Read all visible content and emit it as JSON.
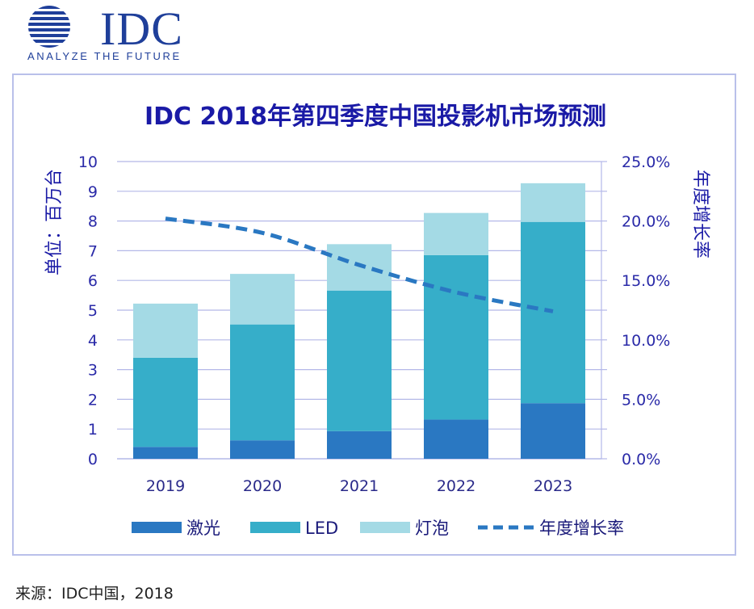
{
  "logo": {
    "text": "IDC",
    "tagline": "ANALYZE THE FUTURE",
    "color": "#1f3f9a"
  },
  "source": "来源：IDC中国，2018",
  "chart_data": {
    "type": "bar",
    "stacked": true,
    "title": "IDC 2018年第四季度中国投影机市场预测",
    "ylabel": "单位：百万台",
    "y2label": "年度增长率",
    "categories": [
      "2019",
      "2020",
      "2021",
      "2022",
      "2023"
    ],
    "ylim": [
      0,
      10
    ],
    "yticks": [
      "0",
      "1",
      "2",
      "3",
      "4",
      "5",
      "6",
      "7",
      "8",
      "9",
      "10"
    ],
    "y2lim": [
      0,
      25
    ],
    "y2ticks": [
      "0.0%",
      "5.0%",
      "10.0%",
      "15.0%",
      "20.0%",
      "25.0%"
    ],
    "grid": true,
    "legend_position": "bottom",
    "series": [
      {
        "name": "激光",
        "type": "bar",
        "color": "#2a78c2",
        "values": [
          0.4,
          0.62,
          0.93,
          1.32,
          1.87
        ]
      },
      {
        "name": "LED",
        "type": "bar",
        "color": "#36aec9",
        "values": [
          3.0,
          3.9,
          4.73,
          5.53,
          6.1
        ]
      },
      {
        "name": "灯泡",
        "type": "bar",
        "color": "#a4dae5",
        "values": [
          1.82,
          1.7,
          1.56,
          1.42,
          1.3
        ]
      },
      {
        "name": "年度增长率",
        "type": "line",
        "style": "dashed",
        "axis": "right",
        "color": "#2a78c2",
        "values": [
          20.2,
          19.0,
          16.3,
          14.0,
          12.4
        ]
      }
    ],
    "title_color": "#1a1aa6",
    "axis_color": "#2a2aa8",
    "grid_color": "#b4b8e8"
  }
}
